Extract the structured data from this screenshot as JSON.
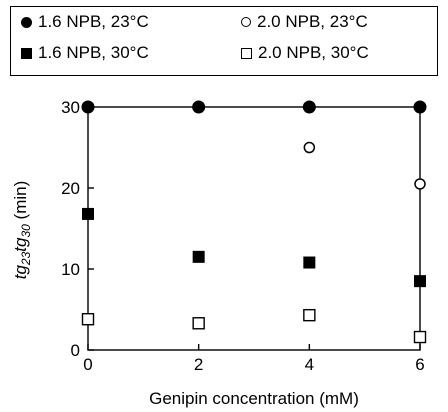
{
  "chart_data": {
    "type": "scatter",
    "xlabel": "Genipin concentration (mM)",
    "ylabel": {
      "parts": [
        {
          "t": "tg",
          "italic": true,
          "sub": false
        },
        {
          "t": "23",
          "italic": true,
          "sub": true
        },
        {
          "t": "tg",
          "italic": true,
          "sub": false
        },
        {
          "t": "30",
          "italic": true,
          "sub": true
        },
        {
          "t": " (min)",
          "italic": false,
          "sub": false
        }
      ]
    },
    "xlim": [
      0,
      6
    ],
    "ylim": [
      0,
      30
    ],
    "xticks": [
      "0",
      "2",
      "4",
      "6"
    ],
    "yticks": [
      "0",
      "10",
      "20",
      "30"
    ],
    "grid": false,
    "legend_position": "top",
    "series": [
      {
        "name": "1.6 NPB, 23°C",
        "marker": "filled-circle",
        "x": [
          0,
          2,
          4,
          6
        ],
        "y": [
          30,
          30,
          30,
          30
        ]
      },
      {
        "name": "2.0 NPB, 23°C",
        "marker": "open-circle",
        "x": [
          0,
          2,
          4,
          6
        ],
        "y": [
          30,
          30,
          25,
          20.5
        ]
      },
      {
        "name": "1.6 NPB, 30°C",
        "marker": "filled-square",
        "x": [
          0,
          2,
          4,
          6
        ],
        "y": [
          16.8,
          11.5,
          10.8,
          8.5
        ]
      },
      {
        "name": "2.0 NPB, 30°C",
        "marker": "open-square",
        "x": [
          0,
          2,
          4,
          6
        ],
        "y": [
          3.8,
          3.3,
          4.3,
          1.6
        ]
      }
    ]
  }
}
